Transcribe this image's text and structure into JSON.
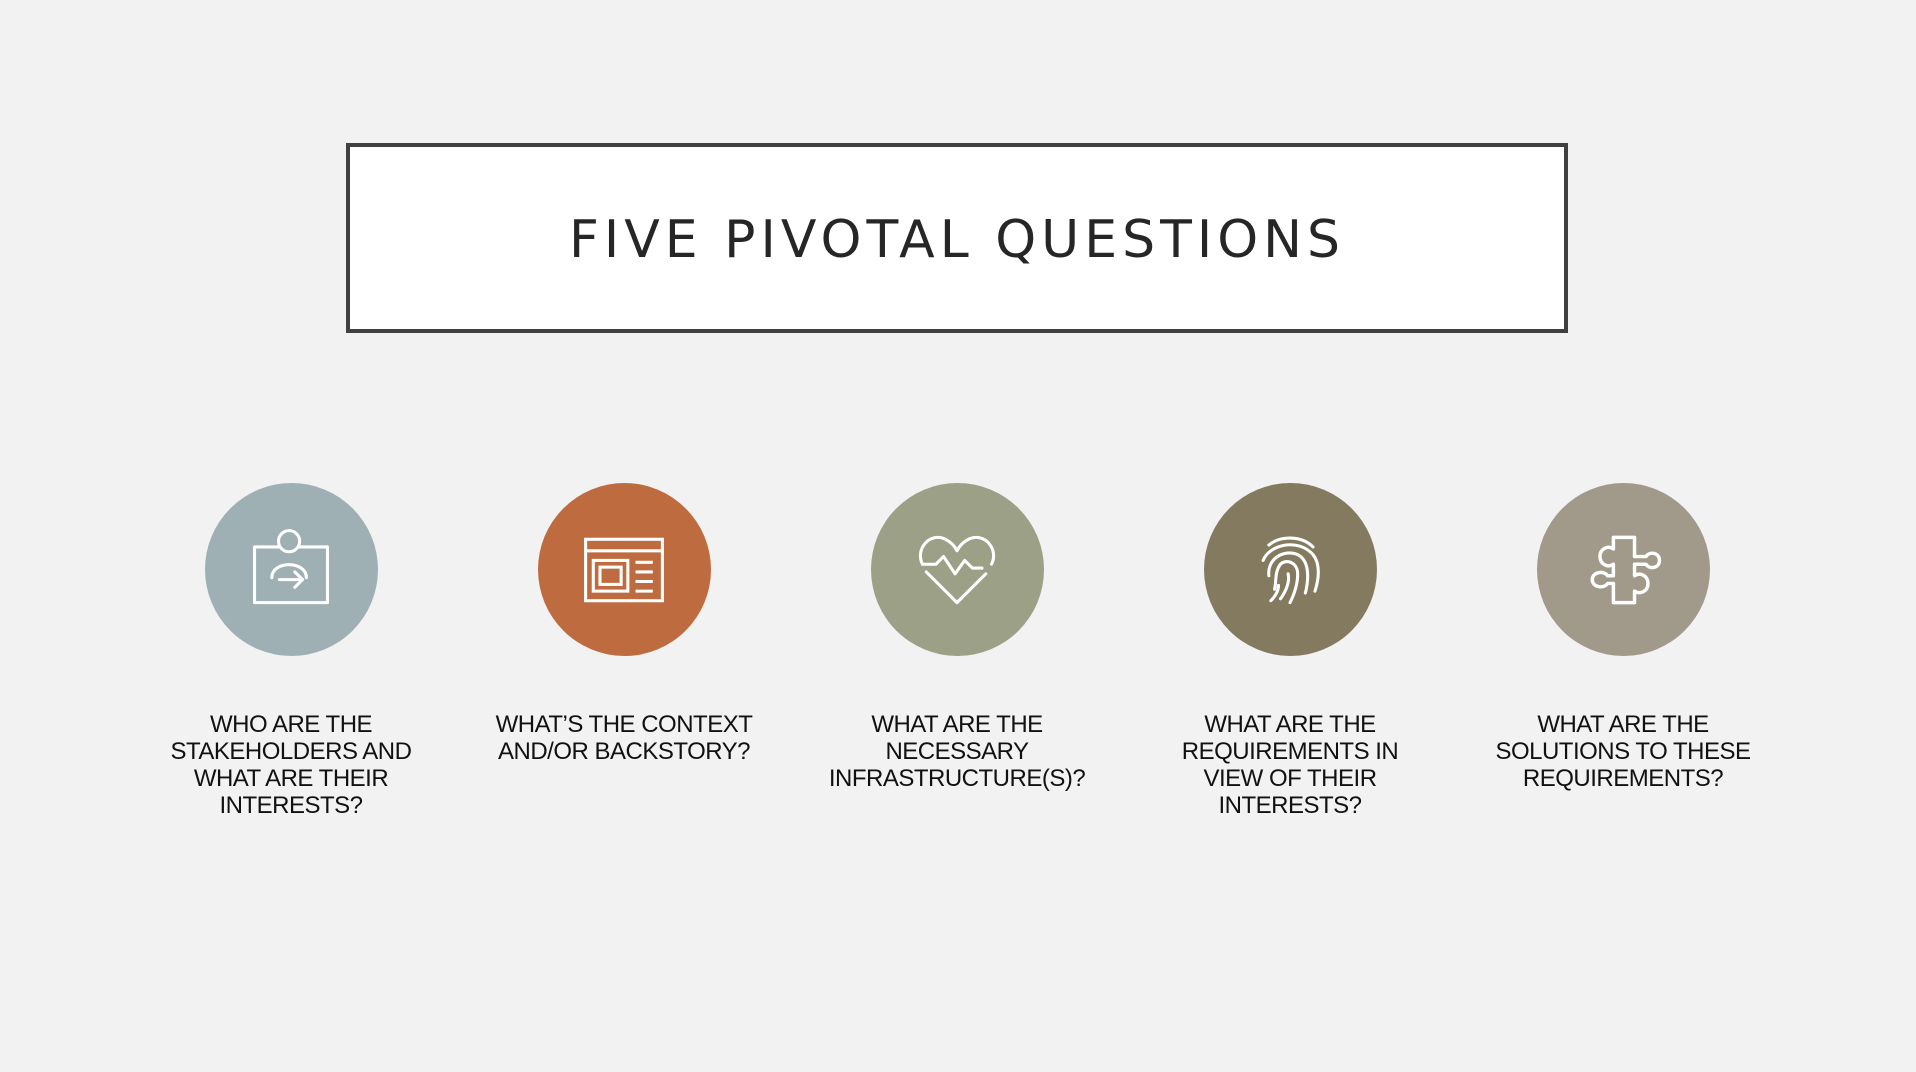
{
  "slide": {
    "title": "FIVE PIVOTAL QUESTIONS"
  },
  "items": [
    {
      "icon": "user-presentation-icon",
      "color": "#9fb0b4",
      "lines": [
        "WHO ARE THE",
        "STAKEHOLDERS AND",
        "WHAT ARE THEIR",
        "INTERESTS?"
      ]
    },
    {
      "icon": "browser-window-icon",
      "color": "#bf6b40",
      "lines": [
        "WHAT’S THE CONTEXT",
        "AND/OR BACKSTORY?"
      ]
    },
    {
      "icon": "heartbeat-icon",
      "color": "#9ca087",
      "lines": [
        "WHAT ARE THE",
        "NECESSARY",
        "INFRASTRUCTURE(S)?"
      ]
    },
    {
      "icon": "fingerprint-icon",
      "color": "#837a60",
      "lines": [
        "WHAT ARE THE",
        "REQUIREMENTS IN",
        "VIEW OF THEIR",
        "INTERESTS?"
      ]
    },
    {
      "icon": "puzzle-piece-icon",
      "color": "#a19a8b",
      "lines": [
        "WHAT ARE THE",
        "SOLUTIONS TO THESE",
        "REQUIREMENTS?"
      ]
    }
  ]
}
